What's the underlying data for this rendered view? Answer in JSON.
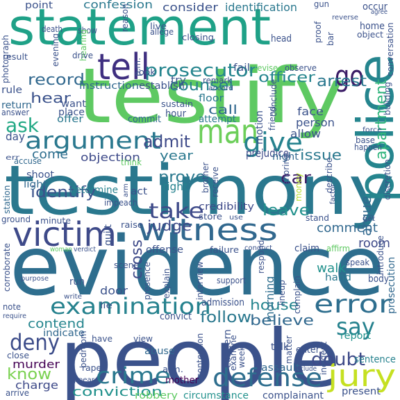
{
  "title": "Word cloud",
  "palette": {
    "background": "#ffffff",
    "purple": "#440154",
    "indigo": "#3b528b",
    "blue": "#31688e",
    "teal": "#21918c",
    "green": "#35b779",
    "lime": "#5ec962",
    "yellow": "#b5de2b"
  },
  "words": [
    {
      "id": "w-statement",
      "text": "statement",
      "color": "#1fa187"
    },
    {
      "id": "w-testify",
      "text": "testify",
      "color": "#5ec962"
    },
    {
      "id": "w-testimony",
      "text": "testimony",
      "color": "#2a788e"
    },
    {
      "id": "w-evidence",
      "text": "evidence",
      "color": "#2e6e8e"
    },
    {
      "id": "w-people",
      "text": "people",
      "color": "#3b528b"
    },
    {
      "id": "w-police",
      "text": "police",
      "color": "#25858e"
    },
    {
      "id": "w-witness",
      "text": "witness",
      "color": "#31688e"
    },
    {
      "id": "w-victim",
      "text": "victim",
      "color": "#3e4a89"
    },
    {
      "id": "w-tell",
      "text": "tell",
      "color": "#3f2f80"
    },
    {
      "id": "w-go",
      "text": "go",
      "color": "#3b1c66"
    },
    {
      "id": "w-man",
      "text": "man",
      "color": "#6cce59"
    },
    {
      "id": "w-examination",
      "text": "examination",
      "color": "#26828e"
    },
    {
      "id": "w-jury",
      "text": "jury",
      "color": "#c5e021"
    },
    {
      "id": "w-error",
      "text": "error",
      "color": "#2e6e8e"
    },
    {
      "id": "w-say",
      "text": "say",
      "color": "#26828e"
    },
    {
      "id": "w-defense",
      "text": "defense",
      "color": "#2e6e8e"
    },
    {
      "id": "w-crime",
      "text": "crime",
      "color": "#2a788e"
    },
    {
      "id": "w-deny",
      "text": "deny",
      "color": "#3d4d8a"
    },
    {
      "id": "w-argument",
      "text": "argument",
      "color": "#2a788e"
    },
    {
      "id": "w-prosecutor",
      "text": "prosecutor",
      "color": "#25858e"
    },
    {
      "id": "w-give",
      "text": "give",
      "color": "#26828e"
    },
    {
      "id": "w-take",
      "text": "take",
      "color": "#3e4a89"
    },
    {
      "id": "w-ask",
      "text": "ask",
      "color": "#22a884"
    },
    {
      "id": "w-apartment",
      "text": "apartment",
      "color": "#2fb47c"
    },
    {
      "id": "w-counsel",
      "text": "counsel",
      "color": "#26828e"
    },
    {
      "id": "w-officer",
      "text": "officer",
      "color": "#25858e"
    },
    {
      "id": "w-arrest",
      "text": "arrest",
      "color": "#2a788e"
    },
    {
      "id": "w-admit",
      "text": "admit",
      "color": "#3e4a89"
    },
    {
      "id": "w-identify",
      "text": "identify",
      "color": "#3b528b"
    },
    {
      "id": "w-argue",
      "text": "argue",
      "color": "#31688e"
    },
    {
      "id": "w-leave",
      "text": "leave",
      "color": "#21918c"
    },
    {
      "id": "w-car",
      "text": "car",
      "color": "#3b1c66"
    },
    {
      "id": "w-prove",
      "text": "prove",
      "color": "#2a788e"
    },
    {
      "id": "w-doubt",
      "text": "doubt",
      "color": "#3e4a89"
    },
    {
      "id": "w-conviction",
      "text": "conviction",
      "color": "#21918c"
    },
    {
      "id": "w-know",
      "text": "know",
      "color": "#7ad151"
    },
    {
      "id": "w-murder",
      "text": "murder",
      "color": "#440154"
    },
    {
      "id": "w-cross",
      "text": "cross",
      "color": "#3e4a89"
    },
    {
      "id": "w-follow",
      "text": "follow",
      "color": "#2a788e"
    },
    {
      "id": "w-house",
      "text": "house",
      "color": "#25858e"
    },
    {
      "id": "w-believe",
      "text": "believe",
      "color": "#31688e"
    },
    {
      "id": "w-contend",
      "text": "contend",
      "color": "#25858e"
    },
    {
      "id": "w-record",
      "text": "record",
      "color": "#31688e"
    },
    {
      "id": "w-hear",
      "text": "hear",
      "color": "#3b528b"
    },
    {
      "id": "w-issue",
      "text": "issue",
      "color": "#2a788e"
    },
    {
      "id": "w-objection",
      "text": "objection",
      "color": "#3e4a89"
    },
    {
      "id": "w-judge",
      "text": "judge",
      "color": "#3e4a89"
    },
    {
      "id": "w-comment",
      "text": "comment",
      "color": "#31688e"
    },
    {
      "id": "w-room",
      "text": "room",
      "color": "#3e4a89"
    },
    {
      "id": "w-call",
      "text": "call",
      "color": "#31688e"
    },
    {
      "id": "w-confession",
      "text": "confession",
      "color": "#2a788e"
    },
    {
      "id": "w-consider",
      "text": "consider",
      "color": "#3b528b"
    },
    {
      "id": "w-identification",
      "text": "identification",
      "color": "#2a788e"
    },
    {
      "id": "w-point",
      "text": "point",
      "color": "#3b528b"
    },
    {
      "id": "w-establish",
      "text": "establish",
      "color": "#3b528b"
    },
    {
      "id": "w-instruction",
      "text": "instruction",
      "color": "#31688e"
    },
    {
      "id": "w-credibility",
      "text": "credibility",
      "color": "#3e4a89"
    },
    {
      "id": "w-charge",
      "text": "charge",
      "color": "#3e4a89"
    },
    {
      "id": "w-robbery",
      "text": "robbery",
      "color": "#5ec962"
    },
    {
      "id": "w-circumstance",
      "text": "circumstance",
      "color": "#21918c"
    },
    {
      "id": "w-complainant",
      "text": "complainant",
      "color": "#3b528b"
    },
    {
      "id": "w-prejudice",
      "text": "prejudice",
      "color": "#3e4a89"
    },
    {
      "id": "w-determine",
      "text": "determine",
      "color": "#26828e"
    },
    {
      "id": "w-year",
      "text": "year",
      "color": "#2a788e"
    },
    {
      "id": "w-right",
      "text": "right",
      "color": "#26828e"
    },
    {
      "id": "w-come",
      "text": "come",
      "color": "#2e6e8e"
    },
    {
      "id": "w-admission",
      "text": "admission",
      "color": "#3b528b"
    },
    {
      "id": "w-door",
      "text": "door",
      "color": "#3b528b"
    },
    {
      "id": "w-hand",
      "text": "hand",
      "color": "#2a788e"
    },
    {
      "id": "w-walk",
      "text": "walk",
      "color": "#21918c"
    },
    {
      "id": "w-morning",
      "text": "morning",
      "color": "#2e6e8e"
    },
    {
      "id": "w-prosecution",
      "text": "prosecution",
      "color": "#31688e"
    },
    {
      "id": "w-indicate",
      "text": "indicate",
      "color": "#31688e"
    },
    {
      "id": "w-sentence",
      "text": "sentence",
      "color": "#26828e"
    },
    {
      "id": "w-mother",
      "text": "mother",
      "color": "#440154"
    },
    {
      "id": "w-present",
      "text": "present",
      "color": "#3b528b"
    },
    {
      "id": "w-assault",
      "text": "assault",
      "color": "#31688e"
    },
    {
      "id": "w-report",
      "text": "report",
      "color": "#21918c"
    },
    {
      "id": "w-abuse",
      "text": "abuse",
      "color": "#31688e"
    },
    {
      "id": "w-convict",
      "text": "convict",
      "color": "#3b528b"
    },
    {
      "id": "w-apartment-floor",
      "text": "floor",
      "color": "#2a788e"
    },
    {
      "id": "w-attempt",
      "text": "attempt",
      "color": "#2a788e"
    },
    {
      "id": "w-motion",
      "text": "motion",
      "color": "#3b528b"
    },
    {
      "id": "w-face",
      "text": "face",
      "color": "#3b528b"
    },
    {
      "id": "w-person",
      "text": "person",
      "color": "#3b528b"
    },
    {
      "id": "w-allow",
      "text": "allow",
      "color": "#3b528b"
    },
    {
      "id": "w-night",
      "text": "night",
      "color": "#31688e"
    },
    {
      "id": "w-day",
      "text": "day",
      "color": "#3b528b"
    },
    {
      "id": "w-accuse",
      "text": "accuse",
      "color": "#31688e"
    },
    {
      "id": "w-station",
      "text": "station",
      "color": "#31688e"
    },
    {
      "id": "w-shoot",
      "text": "shoot",
      "color": "#3b528b"
    },
    {
      "id": "w-light",
      "text": "light",
      "color": "#31688e"
    },
    {
      "id": "w-sustain",
      "text": "sustain",
      "color": "#3b528b"
    },
    {
      "id": "w-commit",
      "text": "commit",
      "color": "#31688e"
    },
    {
      "id": "w-hour",
      "text": "hour",
      "color": "#3b528b"
    },
    {
      "id": "w-offer",
      "text": "offer",
      "color": "#2a788e"
    },
    {
      "id": "w-want",
      "text": "want",
      "color": "#3b528b"
    },
    {
      "id": "w-place",
      "text": "place",
      "color": "#3b528b"
    },
    {
      "id": "w-return",
      "text": "return",
      "color": "#31688e"
    },
    {
      "id": "w-answer",
      "text": "answer",
      "color": "#3b528b"
    },
    {
      "id": "w-rule",
      "text": "rule",
      "color": "#3b528b"
    },
    {
      "id": "w-result",
      "text": "result",
      "color": "#3b528b"
    },
    {
      "id": "w-photograph",
      "text": "photograph",
      "color": "#3b528b"
    },
    {
      "id": "w-death",
      "text": "death",
      "color": "#3b528b"
    },
    {
      "id": "w-show",
      "text": "show",
      "color": "#3b528b"
    },
    {
      "id": "w-hearing",
      "text": "hearing",
      "color": "#5ec962"
    },
    {
      "id": "w-live",
      "text": "live",
      "color": "#3b528b"
    },
    {
      "id": "w-allege",
      "text": "allege",
      "color": "#3b528b"
    },
    {
      "id": "w-closing",
      "text": "closing",
      "color": "#3b528b"
    },
    {
      "id": "w-head",
      "text": "head",
      "color": "#3b528b"
    },
    {
      "id": "w-home",
      "text": "home",
      "color": "#3b528b"
    },
    {
      "id": "w-object",
      "text": "object",
      "color": "#3b528b"
    },
    {
      "id": "w-occur",
      "text": "occur",
      "color": "#3b528b"
    },
    {
      "id": "w-agree",
      "text": "agree",
      "color": "#3b528b"
    },
    {
      "id": "w-reverse",
      "text": "reverse",
      "color": "#3b528b"
    },
    {
      "id": "w-gun",
      "text": "gun",
      "color": "#3b528b"
    },
    {
      "id": "w-proof",
      "text": "proof",
      "color": "#3b528b"
    },
    {
      "id": "w-bar",
      "text": "bar",
      "color": "#3b528b"
    },
    {
      "id": "w-fail",
      "text": "fail",
      "color": "#3b528b"
    },
    {
      "id": "w-revise",
      "text": "revise",
      "color": "#5ec962"
    },
    {
      "id": "w-observe",
      "text": "observe",
      "color": "#3b528b"
    },
    {
      "id": "w-conversation",
      "text": "conversation",
      "color": "#3b528b"
    },
    {
      "id": "w-look",
      "text": "look",
      "color": "#3b528b"
    },
    {
      "id": "w-remark",
      "text": "remark",
      "color": "#3b528b"
    },
    {
      "id": "w-try",
      "text": "try",
      "color": "#3b528b"
    },
    {
      "id": "w-accord",
      "text": "accord",
      "color": "#3b528b"
    },
    {
      "id": "w-building",
      "text": "building",
      "color": "#3b528b"
    },
    {
      "id": "w-evening",
      "text": "evening",
      "color": "#3b528b"
    },
    {
      "id": "w-drive",
      "text": "drive",
      "color": "#3b528b"
    },
    {
      "id": "w-reason",
      "text": "reason",
      "color": "#3b528b"
    },
    {
      "id": "w-pm",
      "text": "p.m.",
      "color": "#3b528b"
    },
    {
      "id": "w-conclude",
      "text": "conclude",
      "color": "#3b528b"
    },
    {
      "id": "w-friend",
      "text": "friend",
      "color": "#3b528b"
    },
    {
      "id": "w-force",
      "text": "force",
      "color": "#3b528b"
    },
    {
      "id": "w-base",
      "text": "base",
      "color": "#3b528b"
    },
    {
      "id": "w-happen",
      "text": "happen",
      "color": "#3b528b"
    },
    {
      "id": "w-discretion",
      "text": "discretion",
      "color": "#3b528b"
    },
    {
      "id": "w-err",
      "text": "err",
      "color": "#3b528b"
    },
    {
      "id": "w-think",
      "text": "think",
      "color": "#5ec962"
    },
    {
      "id": "w-impeach",
      "text": "impeach",
      "color": "#3b528b"
    },
    {
      "id": "w-act",
      "text": "act",
      "color": "#3b528b"
    },
    {
      "id": "w-arm",
      "text": "arm",
      "color": "#3b528b"
    },
    {
      "id": "w-brother",
      "text": "brother",
      "color": "#3b528b"
    },
    {
      "id": "w-receive",
      "text": "receive",
      "color": "#3b528b"
    },
    {
      "id": "w-shoring",
      "text": "shoring",
      "color": "#3b528b"
    },
    {
      "id": "w-money",
      "text": "money",
      "color": "#b5de2b"
    },
    {
      "id": "w-describe",
      "text": "describe",
      "color": "#3b528b"
    },
    {
      "id": "w-factor",
      "text": "factor",
      "color": "#3b528b"
    },
    {
      "id": "w-introduce",
      "text": "introduce",
      "color": "#3b528b"
    },
    {
      "id": "w-get",
      "text": "get",
      "color": "#3b528b"
    },
    {
      "id": "w-stand",
      "text": "stand",
      "color": "#3b528b"
    },
    {
      "id": "w-store",
      "text": "store",
      "color": "#3b528b"
    },
    {
      "id": "w-use",
      "text": "use",
      "color": "#3b528b"
    },
    {
      "id": "w-raise",
      "text": "raise",
      "color": "#3b528b"
    },
    {
      "id": "w-minute",
      "text": "minute",
      "color": "#3b528b"
    },
    {
      "id": "w-ground",
      "text": "ground",
      "color": "#3b528b"
    },
    {
      "id": "w-guilt",
      "text": "guilt",
      "color": "#3b528b"
    },
    {
      "id": "w-offense",
      "text": "offense",
      "color": "#3b528b"
    },
    {
      "id": "w-failure",
      "text": "failure",
      "color": "#3b528b"
    },
    {
      "id": "w-conduct",
      "text": "conduct",
      "color": "#3b528b"
    },
    {
      "id": "w-claim",
      "text": "claim",
      "color": "#3b528b"
    },
    {
      "id": "w-affirm",
      "text": "affirm",
      "color": "#5ec962"
    },
    {
      "id": "w-speak",
      "text": "speak",
      "color": "#3b528b"
    },
    {
      "id": "w-woman",
      "text": "woman",
      "color": "#5ec962"
    },
    {
      "id": "w-verdict",
      "text": "verdict",
      "color": "#3b528b"
    },
    {
      "id": "w-scene",
      "text": "scene",
      "color": "#3b528b"
    },
    {
      "id": "w-presence",
      "text": "presence",
      "color": "#3b528b"
    },
    {
      "id": "w-explain",
      "text": "explain",
      "color": "#3b528b"
    },
    {
      "id": "w-interview",
      "text": "interview",
      "color": "#3b528b"
    },
    {
      "id": "w-respond",
      "text": "respond",
      "color": "#3b528b"
    },
    {
      "id": "w-lineup",
      "text": "lineup",
      "color": "#3b528b"
    },
    {
      "id": "w-complain",
      "text": "complain",
      "color": "#3b528b"
    },
    {
      "id": "w-body",
      "text": "body",
      "color": "#3b528b"
    },
    {
      "id": "w-corroborate",
      "text": "corroborate",
      "color": "#3b528b"
    },
    {
      "id": "w-purpose",
      "text": "purpose",
      "color": "#3b528b"
    },
    {
      "id": "w-run",
      "text": "run",
      "color": "#3b528b"
    },
    {
      "id": "w-lie",
      "text": "lie",
      "color": "#3b528b"
    },
    {
      "id": "w-write",
      "text": "write",
      "color": "#3b528b"
    },
    {
      "id": "w-note",
      "text": "note",
      "color": "#3b528b"
    },
    {
      "id": "w-require",
      "text": "require",
      "color": "#3b528b"
    },
    {
      "id": "w-have",
      "text": "have",
      "color": "#3b528b"
    },
    {
      "id": "w-view",
      "text": "view",
      "color": "#3b528b"
    },
    {
      "id": "w-close",
      "text": "close",
      "color": "#3b528b"
    },
    {
      "id": "w-bedroom",
      "text": "bedroom",
      "color": "#3b528b"
    },
    {
      "id": "w-rape",
      "text": "rape",
      "color": "#3b528b"
    },
    {
      "id": "w-appear",
      "text": "appear",
      "color": "#3b528b"
    },
    {
      "id": "w-arrive",
      "text": "arrive",
      "color": "#3b528b"
    },
    {
      "id": "w-am",
      "text": "a.m.",
      "color": "#3b528b"
    },
    {
      "id": "w-contention",
      "text": "contention",
      "color": "#3b528b"
    },
    {
      "id": "w-concern",
      "text": "concern",
      "color": "#3b528b"
    },
    {
      "id": "w-examine",
      "text": "examine",
      "color": "#3b528b"
    },
    {
      "id": "w-week",
      "text": "week",
      "color": "#3b528b"
    },
    {
      "id": "w-talk",
      "text": "talk",
      "color": "#3b528b"
    },
    {
      "id": "w-matter",
      "text": "matter",
      "color": "#3b528b"
    },
    {
      "id": "w-enter",
      "text": "enter",
      "color": "#3b528b"
    },
    {
      "id": "w-incident",
      "text": "incident",
      "color": "#3b528b"
    },
    {
      "id": "w-include",
      "text": "include",
      "color": "#3b528b"
    },
    {
      "id": "w-support",
      "text": "support",
      "color": "#3b528b"
    }
  ]
}
